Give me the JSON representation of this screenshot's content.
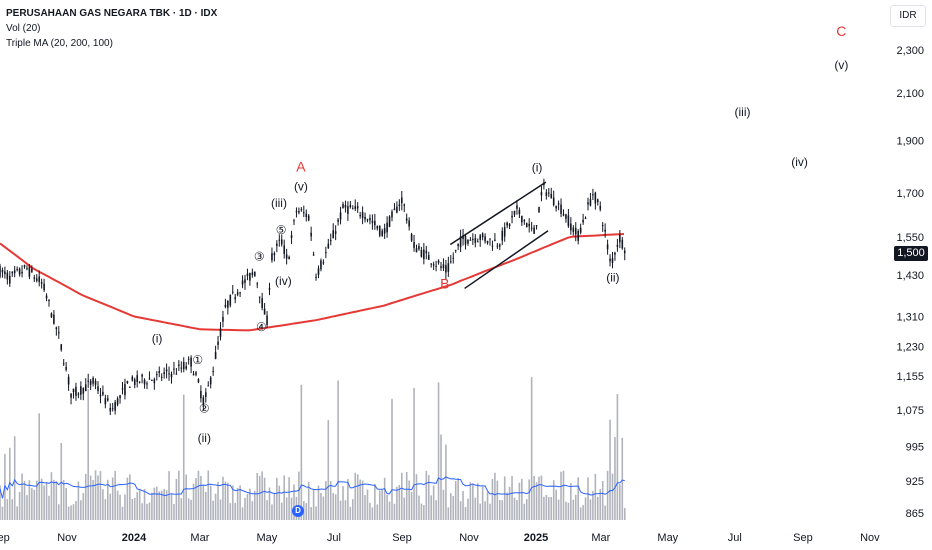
{
  "legend": {
    "title": "PERUSAHAAN GAS NEGARA TBK · 1D · IDX",
    "volume": "Vol (20)",
    "ma": "Triple MA (20, 200, 100)"
  },
  "currency_button": "IDR",
  "last_price_label": "1,500",
  "dividend_marker": "D",
  "colors": {
    "candle": "#131722",
    "ma": "#e53935",
    "volume_bar": "#b0b3bb",
    "volume_ma": "#2962ff",
    "wave_red": "#e53935",
    "wave_black": "#131722"
  },
  "chart_data": {
    "type": "candlestick",
    "y_axis": {
      "ticks": [
        865,
        925,
        995,
        1075,
        1155,
        1230,
        1310,
        1430,
        1550,
        1700,
        1900,
        2100,
        2300
      ],
      "tick_labels": [
        "865",
        "925",
        "995",
        "1,075",
        "1,155",
        "1,230",
        "1,310",
        "1,430",
        "1,550",
        "1,700",
        "1,900",
        "2,100",
        "2,300"
      ],
      "scale": "log"
    },
    "x_axis": {
      "labels": [
        "Sep",
        "Nov",
        "2024",
        "Mar",
        "May",
        "Jul",
        "Sep",
        "Nov",
        "2025",
        "Mar",
        "May",
        "Jul",
        "Sep",
        "Nov"
      ],
      "bold": [
        false,
        false,
        true,
        false,
        false,
        false,
        false,
        false,
        true,
        false,
        false,
        false,
        false,
        false
      ]
    },
    "price_path": [
      {
        "d": "2023-08-25",
        "p": 1460
      },
      {
        "d": "2023-09-10",
        "p": 1420
      },
      {
        "d": "2023-09-25",
        "p": 1450
      },
      {
        "d": "2023-10-10",
        "p": 1400
      },
      {
        "d": "2023-10-25",
        "p": 1250
      },
      {
        "d": "2023-11-05",
        "p": 1110
      },
      {
        "d": "2023-11-25",
        "p": 1140
      },
      {
        "d": "2023-12-12",
        "p": 1075
      },
      {
        "d": "2023-12-28",
        "p": 1140
      },
      {
        "d": "2024-01-20",
        "p": 1150
      },
      {
        "d": "2024-02-10",
        "p": 1170
      },
      {
        "d": "2024-02-22",
        "p": 1190
      },
      {
        "d": "2024-03-05",
        "p": 1090
      },
      {
        "d": "2024-03-12",
        "p": 1160
      },
      {
        "d": "2024-03-25",
        "p": 1340
      },
      {
        "d": "2024-04-08",
        "p": 1400
      },
      {
        "d": "2024-04-20",
        "p": 1440
      },
      {
        "d": "2024-05-01",
        "p": 1290
      },
      {
        "d": "2024-05-05",
        "p": 1480
      },
      {
        "d": "2024-05-14",
        "p": 1540
      },
      {
        "d": "2024-05-20",
        "p": 1470
      },
      {
        "d": "2024-05-28",
        "p": 1640
      },
      {
        "d": "2024-06-08",
        "p": 1620
      },
      {
        "d": "2024-06-15",
        "p": 1430
      },
      {
        "d": "2024-06-28",
        "p": 1530
      },
      {
        "d": "2024-07-10",
        "p": 1650
      },
      {
        "d": "2024-07-28",
        "p": 1630
      },
      {
        "d": "2024-08-15",
        "p": 1560
      },
      {
        "d": "2024-09-01",
        "p": 1680
      },
      {
        "d": "2024-09-12",
        "p": 1520
      },
      {
        "d": "2024-10-01",
        "p": 1470
      },
      {
        "d": "2024-10-12",
        "p": 1440
      },
      {
        "d": "2024-10-25",
        "p": 1540
      },
      {
        "d": "2024-11-10",
        "p": 1550
      },
      {
        "d": "2024-11-28",
        "p": 1530
      },
      {
        "d": "2024-12-15",
        "p": 1640
      },
      {
        "d": "2024-12-30",
        "p": 1560
      },
      {
        "d": "2025-01-08",
        "p": 1720
      },
      {
        "d": "2025-01-25",
        "p": 1640
      },
      {
        "d": "2025-02-08",
        "p": 1550
      },
      {
        "d": "2025-02-22",
        "p": 1700
      },
      {
        "d": "2025-03-01",
        "p": 1640
      },
      {
        "d": "2025-03-10",
        "p": 1460
      },
      {
        "d": "2025-03-18",
        "p": 1550
      },
      {
        "d": "2025-03-25",
        "p": 1500
      }
    ],
    "ma_path": [
      {
        "d": "2023-08-20",
        "p": 1560
      },
      {
        "d": "2023-10-01",
        "p": 1450
      },
      {
        "d": "2023-11-15",
        "p": 1370
      },
      {
        "d": "2024-01-01",
        "p": 1310
      },
      {
        "d": "2024-03-01",
        "p": 1275
      },
      {
        "d": "2024-04-15",
        "p": 1272
      },
      {
        "d": "2024-06-15",
        "p": 1300
      },
      {
        "d": "2024-08-15",
        "p": 1340
      },
      {
        "d": "2024-10-15",
        "p": 1400
      },
      {
        "d": "2024-12-15",
        "p": 1480
      },
      {
        "d": "2025-02-01",
        "p": 1550
      },
      {
        "d": "2025-03-25",
        "p": 1560
      }
    ],
    "channel_lines": [
      {
        "from": {
          "d": "2024-10-15",
          "p": 1525
        },
        "to": {
          "d": "2025-01-10",
          "p": 1740
        }
      },
      {
        "from": {
          "d": "2024-10-28",
          "p": 1390
        },
        "to": {
          "d": "2025-01-12",
          "p": 1570
        }
      }
    ],
    "annotations": [
      {
        "text": "A",
        "d": "2024-06-01",
        "p": 1780,
        "color": "red"
      },
      {
        "text": "B",
        "d": "2024-10-10",
        "p": 1390,
        "color": "red"
      },
      {
        "text": "C",
        "d": "2025-10-06",
        "p": 2370,
        "color": "red"
      },
      {
        "text": "(i)",
        "d": "2024-01-22",
        "p": 1240,
        "color": "black"
      },
      {
        "text": "(ii)",
        "d": "2024-03-05",
        "p": 1005,
        "color": "black"
      },
      {
        "text": "(iii)",
        "d": "2024-05-12",
        "p": 1650,
        "color": "black"
      },
      {
        "text": "(iv)",
        "d": "2024-05-16",
        "p": 1400,
        "color": "black"
      },
      {
        "text": "(v)",
        "d": "2024-06-01",
        "p": 1710,
        "color": "black"
      },
      {
        "text": "(i)",
        "d": "2025-01-02",
        "p": 1780,
        "color": "black"
      },
      {
        "text": "(ii)",
        "d": "2025-03-12",
        "p": 1410,
        "color": "black"
      },
      {
        "text": "(iii)",
        "d": "2025-07-08",
        "p": 2000,
        "color": "black"
      },
      {
        "text": "(iv)",
        "d": "2025-08-29",
        "p": 1800,
        "color": "black"
      },
      {
        "text": "(v)",
        "d": "2025-10-06",
        "p": 2210,
        "color": "black"
      },
      {
        "text": "①",
        "d": "2024-02-28",
        "p": 1185,
        "color": "black"
      },
      {
        "text": "②",
        "d": "2024-03-05",
        "p": 1070,
        "color": "black"
      },
      {
        "text": "③",
        "d": "2024-04-24",
        "p": 1475,
        "color": "black"
      },
      {
        "text": "④",
        "d": "2024-04-26",
        "p": 1270,
        "color": "black"
      },
      {
        "text": "⑤",
        "d": "2024-05-14",
        "p": 1560,
        "color": "black"
      }
    ]
  }
}
